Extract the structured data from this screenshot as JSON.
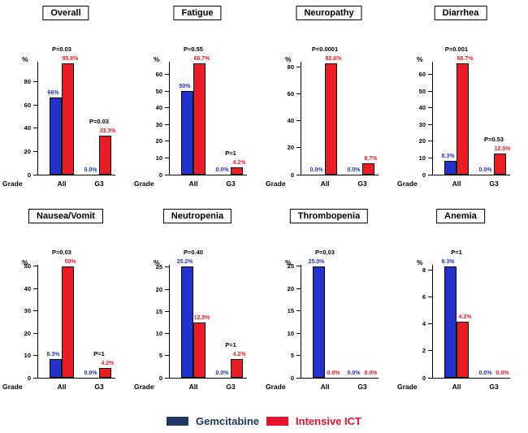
{
  "colors": {
    "gemcitabine_bar": "#2133cc",
    "intensive_ict_bar": "#ec1c24",
    "axis": "#000000",
    "background": "#ffffff"
  },
  "legend": {
    "items": [
      {
        "label": "Gemcitabine",
        "color": "#1f3864"
      },
      {
        "label": "Intensive ICT",
        "color": "#e8112d"
      }
    ]
  },
  "chart_data": [
    {
      "type": "bar",
      "title": "Overall",
      "xlabel": "Grade",
      "ylabel": "%",
      "categories": [
        "All",
        "G3"
      ],
      "yticks": [
        0,
        20,
        40,
        60,
        80
      ],
      "ylim": [
        0,
        80
      ],
      "series": [
        {
          "name": "Gemcitabine",
          "color": "#2133cc",
          "values": [
            66,
            0
          ],
          "labels": [
            "66%",
            "0.0%"
          ]
        },
        {
          "name": "Intensive ICT",
          "color": "#ec1c24",
          "values": [
            95.8,
            33.3
          ],
          "labels": [
            "95.8%",
            "33.3%"
          ]
        }
      ],
      "p_values": [
        "P=0.03",
        "P=0.03"
      ]
    },
    {
      "type": "bar",
      "title": "Fatigue",
      "xlabel": "Grade",
      "ylabel": "%",
      "categories": [
        "All",
        "G3"
      ],
      "yticks": [
        0,
        10,
        20,
        30,
        40,
        50,
        60
      ],
      "ylim": [
        0,
        60
      ],
      "series": [
        {
          "name": "Gemcitabine",
          "color": "#2133cc",
          "values": [
            50,
            0
          ],
          "labels": [
            "50%",
            "0.0%"
          ]
        },
        {
          "name": "Intensive ICT",
          "color": "#ec1c24",
          "values": [
            66.7,
            4.2
          ],
          "labels": [
            "66.7%",
            "4.2%"
          ]
        }
      ],
      "p_values": [
        "P=0.55",
        "P=1"
      ]
    },
    {
      "type": "bar",
      "title": "Neuropathy",
      "xlabel": "Grade",
      "ylabel": "%",
      "categories": [
        "All",
        "G3"
      ],
      "yticks": [
        0,
        20,
        40,
        60,
        80
      ],
      "ylim": [
        0,
        80
      ],
      "series": [
        {
          "name": "Gemcitabine",
          "color": "#2133cc",
          "values": [
            0,
            0
          ],
          "labels": [
            "0.0%",
            "0.0%"
          ]
        },
        {
          "name": "Intensive ICT",
          "color": "#ec1c24",
          "values": [
            82.6,
            8.7
          ],
          "labels": [
            "82.6%",
            "8.7%"
          ]
        }
      ],
      "p_values": [
        "P<0.0001",
        null
      ]
    },
    {
      "type": "bar",
      "title": "Diarrhea",
      "xlabel": "Grade",
      "ylabel": "%",
      "categories": [
        "All",
        "G3"
      ],
      "yticks": [
        0,
        10,
        20,
        30,
        40,
        50,
        60
      ],
      "ylim": [
        0,
        60
      ],
      "series": [
        {
          "name": "Gemcitabine",
          "color": "#2133cc",
          "values": [
            8.3,
            0
          ],
          "labels": [
            "8.3%",
            "0.0%"
          ]
        },
        {
          "name": "Intensive ICT",
          "color": "#ec1c24",
          "values": [
            66.7,
            12.5
          ],
          "labels": [
            "66.7%",
            "12.5%"
          ]
        }
      ],
      "p_values": [
        "P=0.001",
        "P=0.53"
      ]
    },
    {
      "type": "bar",
      "title": "Nausea/Vomit",
      "xlabel": "Grade",
      "ylabel": "%",
      "categories": [
        "All",
        "G3"
      ],
      "yticks": [
        0,
        10,
        20,
        30,
        40,
        50
      ],
      "ylim": [
        0,
        50
      ],
      "series": [
        {
          "name": "Gemcitabine",
          "color": "#2133cc",
          "values": [
            8.3,
            0
          ],
          "labels": [
            "8.3%",
            "0.0%"
          ]
        },
        {
          "name": "Intensive ICT",
          "color": "#ec1c24",
          "values": [
            50,
            4.2
          ],
          "labels": [
            "50%",
            "4.2%"
          ]
        }
      ],
      "p_values": [
        "P=0.03",
        "P=1"
      ]
    },
    {
      "type": "bar",
      "title": "Neutropenia",
      "xlabel": "Grade",
      "ylabel": "%",
      "categories": [
        "All",
        "G3"
      ],
      "yticks": [
        0,
        5,
        10,
        15,
        20,
        25
      ],
      "ylim": [
        0,
        25
      ],
      "series": [
        {
          "name": "Gemcitabine",
          "color": "#2133cc",
          "values": [
            25.2,
            0
          ],
          "labels": [
            "25.2%",
            "0.0%"
          ]
        },
        {
          "name": "Intensive ICT",
          "color": "#ec1c24",
          "values": [
            12.5,
            4.2
          ],
          "labels": [
            "12.5%",
            "4.2%"
          ]
        }
      ],
      "p_values": [
        "P=0.40",
        "P=1"
      ]
    },
    {
      "type": "bar",
      "title": "Thrombopenia",
      "xlabel": "Grade",
      "ylabel": "%",
      "categories": [
        "All",
        "G3"
      ],
      "yticks": [
        0,
        5,
        10,
        15,
        20,
        25
      ],
      "ylim": [
        0,
        25
      ],
      "series": [
        {
          "name": "Gemcitabine",
          "color": "#2133cc",
          "values": [
            25.0,
            0
          ],
          "labels": [
            "25.0%",
            "0.0%"
          ]
        },
        {
          "name": "Intensive ICT",
          "color": "#ec1c24",
          "values": [
            0,
            0
          ],
          "labels": [
            "0.0%",
            "0.0%"
          ]
        }
      ],
      "p_values": [
        "P=0.03",
        null
      ]
    },
    {
      "type": "bar",
      "title": "Anemia",
      "xlabel": "Grade",
      "ylabel": "%",
      "categories": [
        "All",
        "G3"
      ],
      "yticks": [
        0,
        2,
        4,
        6,
        8
      ],
      "ylim": [
        0,
        8
      ],
      "series": [
        {
          "name": "Gemcitabine",
          "color": "#2133cc",
          "values": [
            8.3,
            0
          ],
          "labels": [
            "8.3%",
            "0.0%"
          ]
        },
        {
          "name": "Intensive ICT",
          "color": "#ec1c24",
          "values": [
            4.2,
            0
          ],
          "labels": [
            "4.2%",
            "0.0%"
          ]
        }
      ],
      "p_values": [
        "P=1",
        null
      ]
    }
  ]
}
